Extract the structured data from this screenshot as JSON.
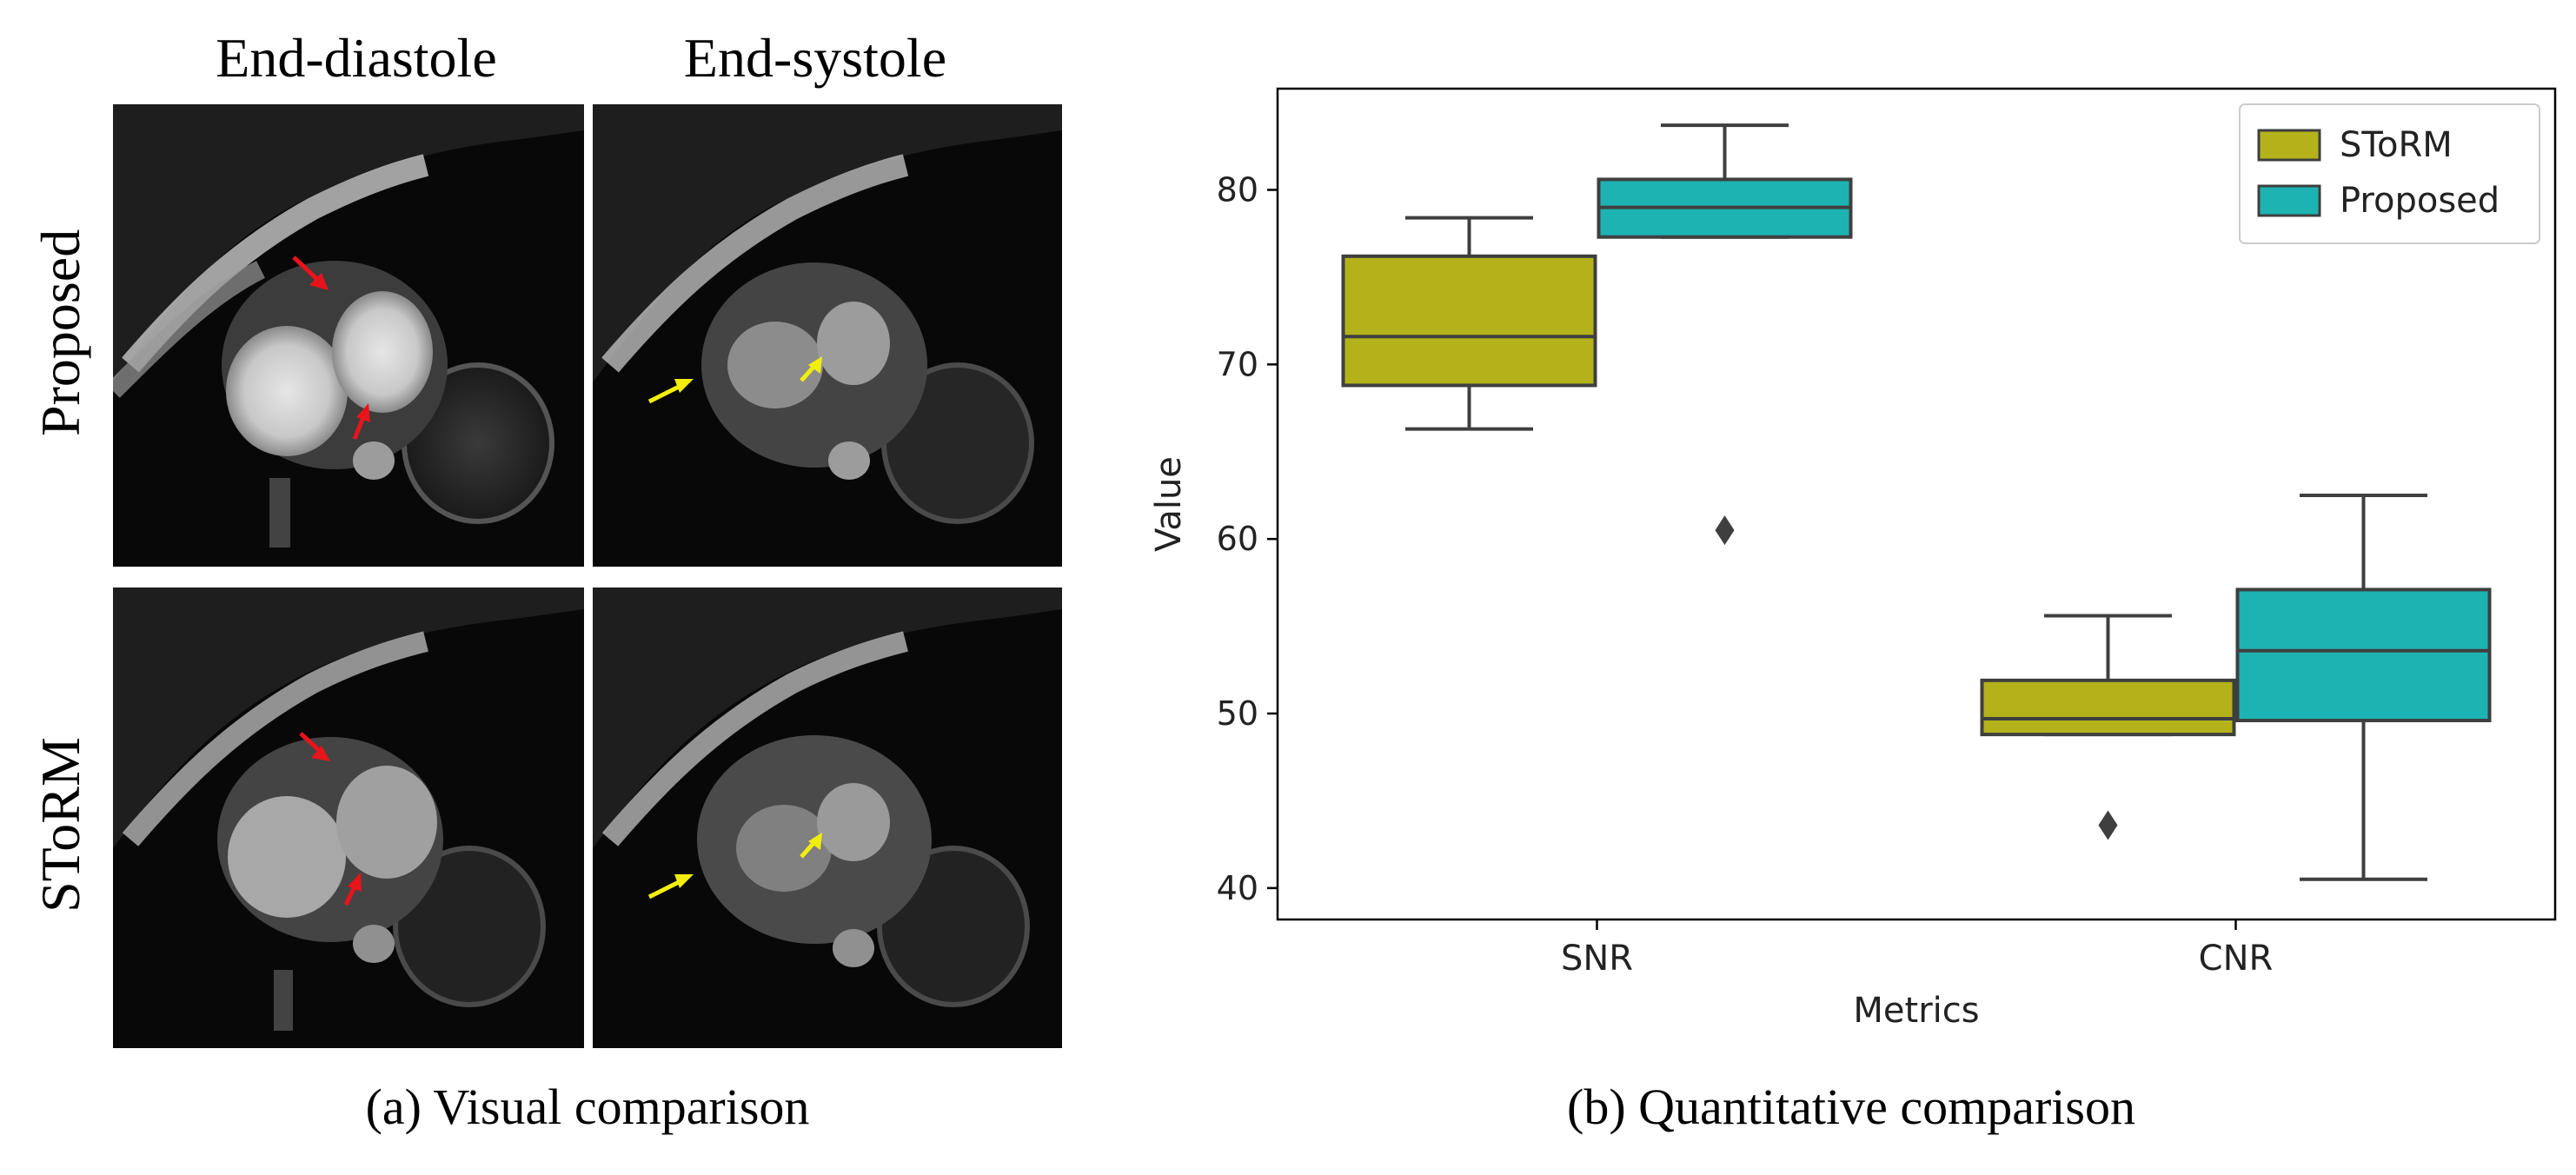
{
  "panel_a": {
    "columns": [
      "End-diastole",
      "End-systole"
    ],
    "rows": [
      "Proposed",
      "SToRM"
    ],
    "caption": "(a) Visual comparison"
  },
  "panel_b": {
    "caption": "(b) Quantitative comparison"
  },
  "colors": {
    "red_arrow": "#e8141b",
    "yellow_arrow": "#f2ee0c",
    "storm_box": "#b4b21a",
    "proposed_box": "#1db3b3",
    "line": "#3f3f3f"
  },
  "chart_data": {
    "type": "box",
    "xlabel": "Metrics",
    "ylabel": "Value",
    "ylim": [
      38.2,
      85.8
    ],
    "yticks": [
      40,
      50,
      60,
      70,
      80
    ],
    "categories": [
      "SNR",
      "CNR"
    ],
    "legend_position": "top-right",
    "series": [
      {
        "name": "SToRM",
        "color": "#b4b21a",
        "boxes": [
          {
            "whisker_low": 66.3,
            "q1": 68.8,
            "median": 71.6,
            "q3": 76.2,
            "whisker_high": 78.4,
            "outliers": []
          },
          {
            "whisker_low": 48.8,
            "q1": 48.8,
            "median": 49.7,
            "q3": 51.9,
            "whisker_high": 55.6,
            "outliers": [
              43.6
            ]
          }
        ]
      },
      {
        "name": "Proposed",
        "color": "#1db3b3",
        "boxes": [
          {
            "whisker_low": 77.3,
            "q1": 77.3,
            "median": 79.0,
            "q3": 80.6,
            "whisker_high": 83.7,
            "outliers": [
              60.5
            ]
          },
          {
            "whisker_low": 40.5,
            "q1": 49.6,
            "median": 53.6,
            "q3": 57.1,
            "whisker_high": 62.5,
            "outliers": []
          }
        ]
      }
    ]
  }
}
